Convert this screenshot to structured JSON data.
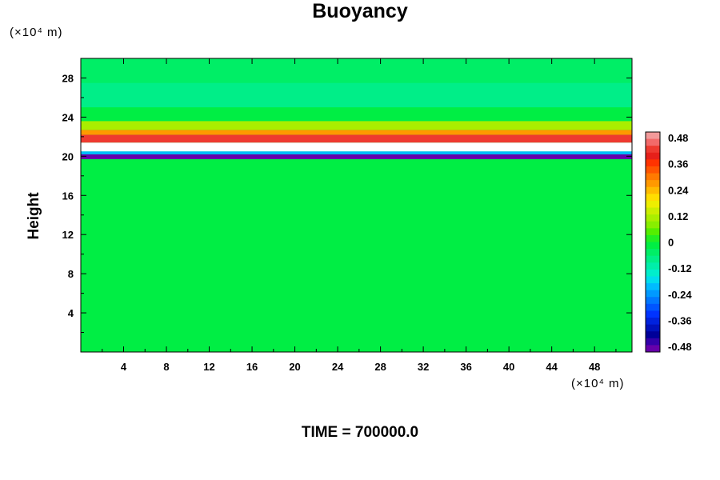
{
  "chart_data": {
    "type": "heatmap",
    "title": "Buoyancy",
    "ylabel": "Height",
    "xlabel": "",
    "x_unit": "(×10⁴ m)",
    "y_unit": "(×10⁴ m)",
    "xlim": [
      0,
      51.5
    ],
    "ylim": [
      0,
      30
    ],
    "x_ticks": [
      4,
      8,
      12,
      16,
      20,
      24,
      28,
      32,
      36,
      40,
      44,
      48
    ],
    "y_ticks": [
      4,
      8,
      12,
      16,
      20,
      24,
      28
    ],
    "colorbar": {
      "range": [
        -0.48,
        0.48
      ],
      "labels": [
        "0.48",
        "0.36",
        "0.24",
        "0.12",
        "0",
        "-0.12",
        "-0.24",
        "-0.36",
        "-0.48"
      ],
      "colors": [
        "#f29a9a",
        "#f26a6a",
        "#ee3a30",
        "#e6201a",
        "#ff3300",
        "#ff5500",
        "#ff7a00",
        "#ff9900",
        "#ffbb00",
        "#ffdd00",
        "#eeee00",
        "#ccee00",
        "#aaee00",
        "#88ee00",
        "#55ee00",
        "#22ee22",
        "#00ee44",
        "#00ee66",
        "#00ee88",
        "#00eeaa",
        "#00eecc",
        "#00ddee",
        "#00bbff",
        "#0099ff",
        "#0077ff",
        "#0055ff",
        "#0033ff",
        "#0022dd",
        "#0011bb",
        "#000099",
        "#3300aa",
        "#6600aa"
      ]
    },
    "field_bands": [
      {
        "y0": 0.0,
        "y1": 19.7,
        "value": 0.0
      },
      {
        "y0": 19.7,
        "y1": 20.2,
        "value": -0.45
      },
      {
        "y0": 20.2,
        "y1": 20.5,
        "value": -0.2
      },
      {
        "y0": 20.5,
        "y1": 21.4,
        "value": 0.5
      },
      {
        "y0": 21.4,
        "y1": 22.2,
        "value": 0.4
      },
      {
        "y0": 22.2,
        "y1": 22.7,
        "value": 0.26
      },
      {
        "y0": 22.7,
        "y1": 23.6,
        "value": 0.1
      },
      {
        "y0": 23.6,
        "y1": 25.0,
        "value": -0.02
      },
      {
        "y0": 25.0,
        "y1": 27.5,
        "value": -0.08
      },
      {
        "y0": 27.5,
        "y1": 30.0,
        "value": -0.04
      }
    ],
    "background_value": 0.0
  },
  "time_label": "TIME = 700000.0"
}
